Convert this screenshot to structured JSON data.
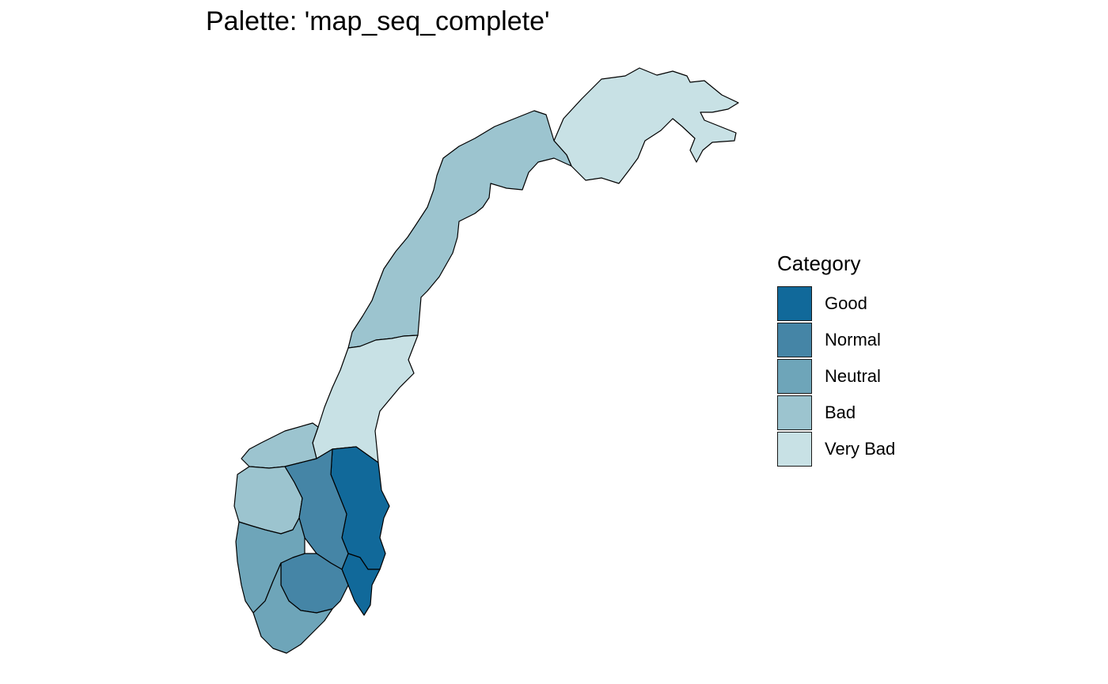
{
  "title": "Palette: 'map_seq_complete'",
  "legend": {
    "title": "Category",
    "items": [
      {
        "label": "Good",
        "color": "#11699a"
      },
      {
        "label": "Normal",
        "color": "#4585a6"
      },
      {
        "label": "Neutral",
        "color": "#6ea5b9"
      },
      {
        "label": "Bad",
        "color": "#9cc4cf"
      },
      {
        "label": "Very Bad",
        "color": "#c8e1e5"
      }
    ]
  },
  "map": {
    "regions": [
      {
        "name": "Troms og Finnmark",
        "category": "Very Bad"
      },
      {
        "name": "Nordland",
        "category": "Bad"
      },
      {
        "name": "Trondelag",
        "category": "Very Bad"
      },
      {
        "name": "Innlandet",
        "category": "Good"
      },
      {
        "name": "Viken",
        "category": "Good"
      },
      {
        "name": "Oslo",
        "category": "Normal"
      },
      {
        "name": "Vestland",
        "category": "Bad"
      },
      {
        "name": "More og Romsdal",
        "category": "Bad"
      },
      {
        "name": "Vestfold og Telemark",
        "category": "Normal"
      },
      {
        "name": "Agder",
        "category": "Neutral"
      },
      {
        "name": "Rogaland",
        "category": "Neutral"
      }
    ]
  }
}
